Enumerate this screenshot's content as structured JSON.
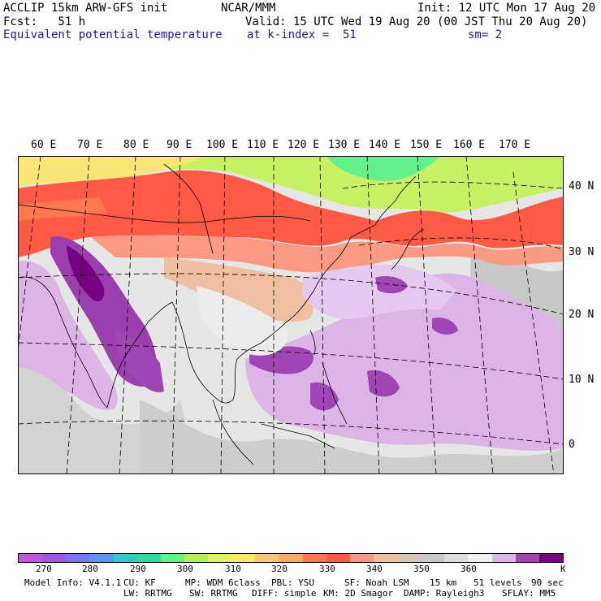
{
  "header": {
    "line1_left": "ACCLIP 15km ARW-GFS init",
    "line1_center": "NCAR/MMM",
    "line1_right": "Init: 12 UTC Mon 17 Aug 20",
    "line2_left": "Fcst:   51 h",
    "line2_right": "Valid: 15 UTC Wed 19 Aug 20 (00 JST Thu 20 Aug 20)",
    "line3_left": "Equivalent potential temperature",
    "line3_center": "at k-index =  51",
    "line3_right": "sm= 2"
  },
  "map": {
    "lon_labels": [
      "60 E",
      "70 E",
      "80 E",
      "90 E",
      "100 E",
      "110 E",
      "120 E",
      "130 E",
      "140 E",
      "150 E",
      "160 E",
      "170 E"
    ],
    "lat_labels": [
      "40 N",
      "30 N",
      "20 N",
      "10 N",
      "0"
    ],
    "field_colors": {
      "ocean_gray": "#c8c8c8",
      "light": "#e8e8e8",
      "warm_red": "#ff5a46",
      "orange": "#ff8c64",
      "yellow_green": "#c8f064",
      "violet": "#9b3fae",
      "lavender": "#dcb4e6"
    }
  },
  "colorbar": {
    "colors": [
      "#c856dc",
      "#a05adc",
      "#7878e6",
      "#5a96f0",
      "#32c8c8",
      "#32dca0",
      "#64f08c",
      "#b4f064",
      "#e6f064",
      "#fae678",
      "#fac878",
      "#ffaa64",
      "#ff7850",
      "#ff5a46",
      "#fa9a82",
      "#f0bea0",
      "#d7c8b4",
      "#c8c8c8",
      "#dcdcdc",
      "#f0f0f0",
      "#dcb4e6",
      "#a046b4",
      "#780082"
    ],
    "tick_labels": [
      "270",
      "280",
      "290",
      "300",
      "310",
      "320",
      "330",
      "340",
      "350",
      "360"
    ],
    "unit": "K"
  },
  "footer": {
    "line1": [
      "Model Info: V4.1.1",
      "CU: KF",
      "MP: WDM 6class",
      "PBL: YSU",
      "SF: Noah LSM",
      "15 km",
      "51 levels",
      "90 sec"
    ],
    "line2": [
      "LW: RRTMG",
      "SW: RRTMG",
      "DIFF: simple",
      "KM: 2D Smagor",
      "DAMP: Rayleigh3",
      "SFLAY: MM5"
    ]
  }
}
